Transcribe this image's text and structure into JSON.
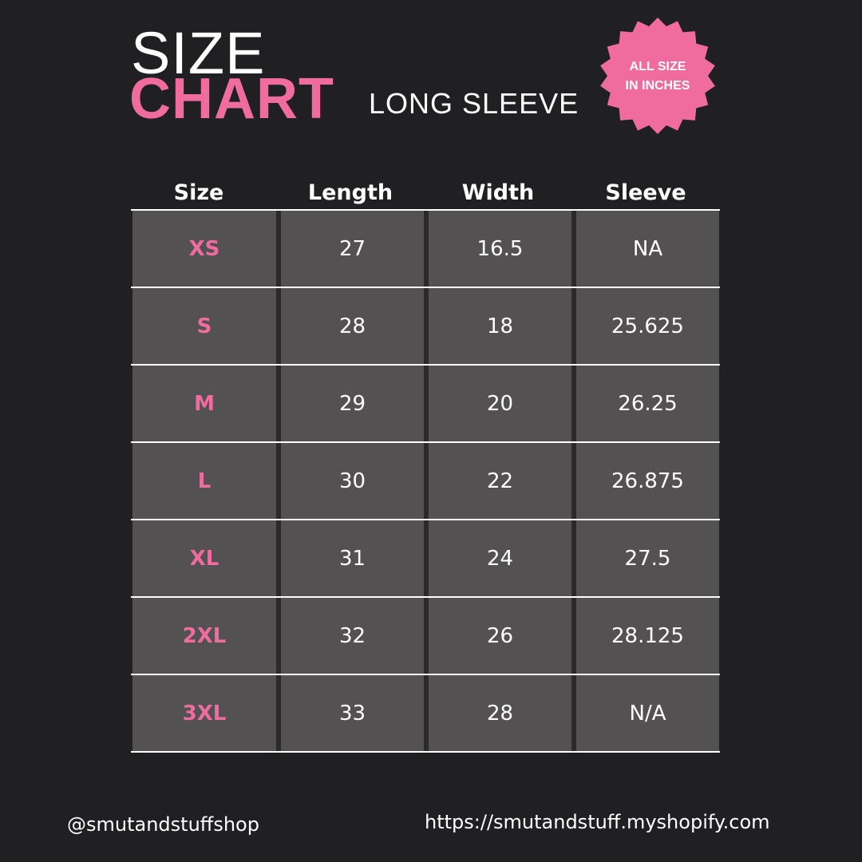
{
  "title": {
    "line1": "SIZE",
    "line2": "CHART",
    "subtitle": "LONG SLEEVE"
  },
  "badge": {
    "line1": "ALL SIZE",
    "line2": "IN INCHES",
    "color": "#f06b9e"
  },
  "colors": {
    "background": "#202022",
    "cell": "#535152",
    "accent": "#f06b9e"
  },
  "table": {
    "headers": [
      "Size",
      "Length",
      "Width",
      "Sleeve"
    ],
    "rows": [
      [
        "XS",
        "27",
        "16.5",
        "NA"
      ],
      [
        "S",
        "28",
        "18",
        "25.625"
      ],
      [
        "M",
        "29",
        "20",
        "26.25"
      ],
      [
        "L",
        "30",
        "22",
        "26.875"
      ],
      [
        "XL",
        "31",
        "24",
        "27.5"
      ],
      [
        "2XL",
        "32",
        "26",
        "28.125"
      ],
      [
        "3XL",
        "33",
        "28",
        "N/A"
      ]
    ]
  },
  "footer": {
    "social": "@smutandstuffshop",
    "url": "https://smutandstuff.myshopify.com"
  }
}
